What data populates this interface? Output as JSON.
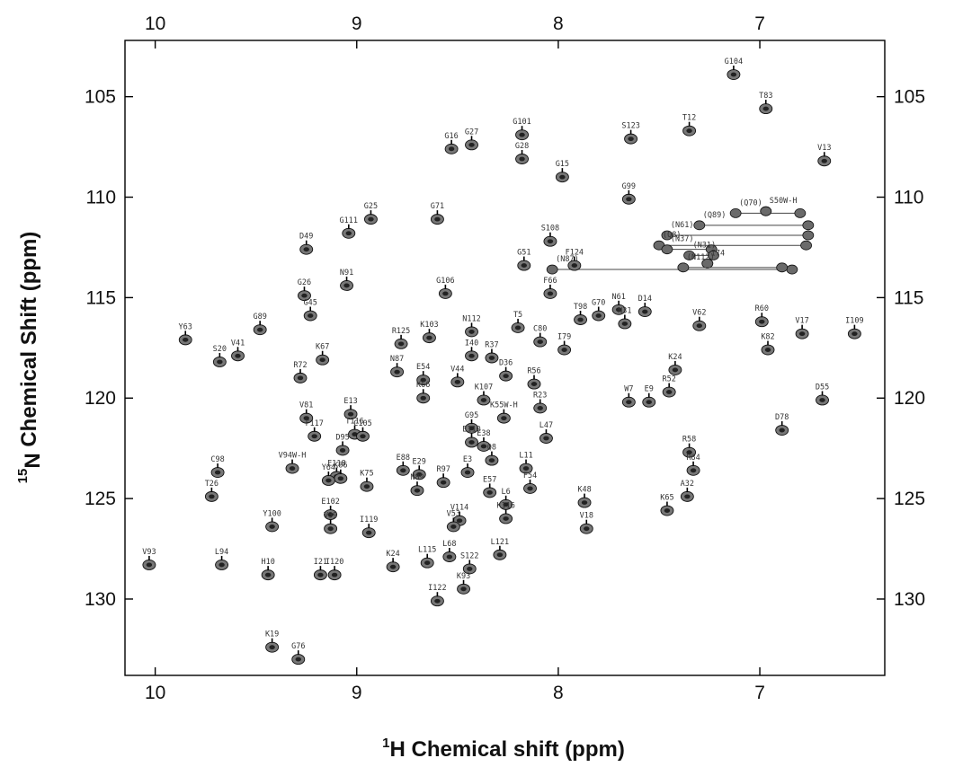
{
  "chart_data": {
    "type": "scatter",
    "title": "",
    "xlabel": {
      "sup": "1",
      "main": "H Chemical shift (ppm)"
    },
    "ylabel": {
      "sup": "15",
      "sub": "N",
      "main": " Chemical Shift (ppm)"
    },
    "xlim": [
      10.15,
      6.38
    ],
    "ylim": [
      133.8,
      102.2
    ],
    "xticks": [
      10,
      9,
      8,
      7
    ],
    "yticks": [
      105,
      110,
      115,
      120,
      125,
      130
    ],
    "grid": false,
    "peaks": [
      {
        "label": "G104",
        "x": 7.13,
        "y": 103.9
      },
      {
        "label": "T83",
        "x": 6.97,
        "y": 105.6
      },
      {
        "label": "T12",
        "x": 7.35,
        "y": 106.7
      },
      {
        "label": "S123",
        "x": 7.64,
        "y": 107.1
      },
      {
        "label": "G101",
        "x": 8.18,
        "y": 106.9
      },
      {
        "label": "G27",
        "x": 8.43,
        "y": 107.4
      },
      {
        "label": "G16",
        "x": 8.53,
        "y": 107.6
      },
      {
        "label": "V13",
        "x": 6.68,
        "y": 108.2
      },
      {
        "label": "G28",
        "x": 8.18,
        "y": 108.1
      },
      {
        "label": "G15",
        "x": 7.98,
        "y": 109.0
      },
      {
        "label": "G99",
        "x": 7.65,
        "y": 110.1
      },
      {
        "label": "G25",
        "x": 8.93,
        "y": 111.1
      },
      {
        "label": "G71",
        "x": 8.6,
        "y": 111.1
      },
      {
        "label": "G111",
        "x": 9.04,
        "y": 111.8
      },
      {
        "label": "S108",
        "x": 8.04,
        "y": 112.2
      },
      {
        "label": "D49",
        "x": 9.25,
        "y": 112.6
      },
      {
        "label": "F124",
        "x": 7.92,
        "y": 113.4
      },
      {
        "label": "G51",
        "x": 8.17,
        "y": 113.4
      },
      {
        "label": "N91",
        "x": 9.05,
        "y": 114.4
      },
      {
        "label": "G106",
        "x": 8.56,
        "y": 114.8
      },
      {
        "label": "G26",
        "x": 9.26,
        "y": 114.9
      },
      {
        "label": "G45",
        "x": 9.23,
        "y": 115.9
      },
      {
        "label": "F66",
        "x": 8.04,
        "y": 114.8
      },
      {
        "label": "T98",
        "x": 7.89,
        "y": 116.1
      },
      {
        "label": "G70",
        "x": 7.8,
        "y": 115.9
      },
      {
        "label": "N61",
        "x": 7.7,
        "y": 115.6
      },
      {
        "label": "D14",
        "x": 7.57,
        "y": 115.7
      },
      {
        "label": "N31",
        "x": 7.67,
        "y": 116.3
      },
      {
        "label": "V62",
        "x": 7.3,
        "y": 116.4
      },
      {
        "label": "R60",
        "x": 6.99,
        "y": 116.2
      },
      {
        "label": "V17",
        "x": 6.79,
        "y": 116.8
      },
      {
        "label": "I109",
        "x": 6.53,
        "y": 116.8
      },
      {
        "label": "G89",
        "x": 9.48,
        "y": 116.6
      },
      {
        "label": "Y63",
        "x": 9.85,
        "y": 117.1
      },
      {
        "label": "N112",
        "x": 8.43,
        "y": 116.7
      },
      {
        "label": "K103",
        "x": 8.64,
        "y": 117.0
      },
      {
        "label": "T5",
        "x": 8.2,
        "y": 116.5
      },
      {
        "label": "C80",
        "x": 8.09,
        "y": 117.2
      },
      {
        "label": "I79",
        "x": 7.97,
        "y": 117.6
      },
      {
        "label": "R125",
        "x": 8.78,
        "y": 117.3
      },
      {
        "label": "S20",
        "x": 9.68,
        "y": 118.2
      },
      {
        "label": "V41",
        "x": 9.59,
        "y": 117.9
      },
      {
        "label": "K67",
        "x": 9.17,
        "y": 118.1
      },
      {
        "label": "I40",
        "x": 8.43,
        "y": 117.9
      },
      {
        "label": "R37",
        "x": 8.33,
        "y": 118.0
      },
      {
        "label": "R72",
        "x": 9.28,
        "y": 119.0
      },
      {
        "label": "N87",
        "x": 8.8,
        "y": 118.7
      },
      {
        "label": "K24",
        "x": 7.42,
        "y": 118.6
      },
      {
        "label": "K82",
        "x": 6.96,
        "y": 117.6
      },
      {
        "label": "R56",
        "x": 8.12,
        "y": 119.3
      },
      {
        "label": "D36",
        "x": 8.26,
        "y": 118.9
      },
      {
        "label": "V44",
        "x": 8.5,
        "y": 119.2
      },
      {
        "label": "E54",
        "x": 8.67,
        "y": 119.1
      },
      {
        "label": "K107",
        "x": 8.37,
        "y": 120.1
      },
      {
        "label": "R23",
        "x": 8.09,
        "y": 120.5
      },
      {
        "label": "K66",
        "x": 8.67,
        "y": 120.0
      },
      {
        "label": "W7",
        "x": 7.65,
        "y": 120.2
      },
      {
        "label": "E9",
        "x": 7.55,
        "y": 120.2
      },
      {
        "label": "R52",
        "x": 7.45,
        "y": 119.7
      },
      {
        "label": "D55",
        "x": 6.69,
        "y": 120.1
      },
      {
        "label": "V81",
        "x": 9.25,
        "y": 121.0
      },
      {
        "label": "E13",
        "x": 9.03,
        "y": 120.8
      },
      {
        "label": "K55W-H",
        "x": 8.27,
        "y": 121.0
      },
      {
        "label": "D78",
        "x": 6.89,
        "y": 121.6
      },
      {
        "label": "T116",
        "x": 9.01,
        "y": 121.8
      },
      {
        "label": "C105",
        "x": 8.97,
        "y": 121.9
      },
      {
        "label": "F117",
        "x": 9.21,
        "y": 121.9
      },
      {
        "label": "G95",
        "x": 8.43,
        "y": 121.5
      },
      {
        "label": "E38",
        "x": 8.37,
        "y": 122.4
      },
      {
        "label": "L47",
        "x": 8.06,
        "y": 122.0
      },
      {
        "label": "D95",
        "x": 9.07,
        "y": 122.6
      },
      {
        "label": "L11",
        "x": 8.16,
        "y": 123.5
      },
      {
        "label": "Q8",
        "x": 8.33,
        "y": 123.1
      },
      {
        "label": "R58",
        "x": 7.35,
        "y": 122.7
      },
      {
        "label": "E110",
        "x": 8.43,
        "y": 122.2
      },
      {
        "label": "V94W-H",
        "x": 9.32,
        "y": 123.5
      },
      {
        "label": "E118",
        "x": 9.1,
        "y": 123.9
      },
      {
        "label": "K86",
        "x": 9.08,
        "y": 124.0
      },
      {
        "label": "E88",
        "x": 8.77,
        "y": 123.6
      },
      {
        "label": "E29",
        "x": 8.69,
        "y": 123.8
      },
      {
        "label": "E3",
        "x": 8.45,
        "y": 123.7
      },
      {
        "label": "F54",
        "x": 8.14,
        "y": 124.5
      },
      {
        "label": "R84",
        "x": 7.33,
        "y": 123.6
      },
      {
        "label": "C98",
        "x": 9.69,
        "y": 123.7
      },
      {
        "label": "Y64",
        "x": 9.14,
        "y": 124.1
      },
      {
        "label": "K75",
        "x": 8.95,
        "y": 124.4
      },
      {
        "label": "N89",
        "x": 8.7,
        "y": 124.6
      },
      {
        "label": "R97",
        "x": 8.57,
        "y": 124.2
      },
      {
        "label": "E57",
        "x": 8.34,
        "y": 124.7
      },
      {
        "label": "L6",
        "x": 8.26,
        "y": 125.3
      },
      {
        "label": "T26",
        "x": 9.72,
        "y": 124.9
      },
      {
        "label": "K48",
        "x": 7.87,
        "y": 125.2
      },
      {
        "label": "A32",
        "x": 7.36,
        "y": 124.9
      },
      {
        "label": "K65",
        "x": 7.46,
        "y": 125.6
      },
      {
        "label": "E102",
        "x": 9.13,
        "y": 125.8
      },
      {
        "label": "V114",
        "x": 8.49,
        "y": 126.1
      },
      {
        "label": "K116",
        "x": 8.26,
        "y": 126.0
      },
      {
        "label": "Y100",
        "x": 9.42,
        "y": 126.4
      },
      {
        "label": "V39",
        "x": 9.13,
        "y": 126.5
      },
      {
        "label": "I119",
        "x": 8.94,
        "y": 126.7
      },
      {
        "label": "V53",
        "x": 8.52,
        "y": 126.4
      },
      {
        "label": "V18",
        "x": 7.86,
        "y": 126.5
      },
      {
        "label": "V93",
        "x": 10.03,
        "y": 128.3
      },
      {
        "label": "L94",
        "x": 9.67,
        "y": 128.3
      },
      {
        "label": "I120",
        "x": 9.11,
        "y": 128.8
      },
      {
        "label": "I21",
        "x": 9.18,
        "y": 128.8
      },
      {
        "label": "K24",
        "x": 8.82,
        "y": 128.4
      },
      {
        "label": "L115",
        "x": 8.65,
        "y": 128.2
      },
      {
        "label": "L68",
        "x": 8.54,
        "y": 127.9
      },
      {
        "label": "S122",
        "x": 8.44,
        "y": 128.5
      },
      {
        "label": "L121",
        "x": 8.29,
        "y": 127.8
      },
      {
        "label": "H10",
        "x": 9.44,
        "y": 128.8
      },
      {
        "label": "I122",
        "x": 8.6,
        "y": 130.1
      },
      {
        "label": "K93",
        "x": 8.47,
        "y": 129.5
      },
      {
        "label": "K19",
        "x": 9.42,
        "y": 132.4
      },
      {
        "label": "G76",
        "x": 9.29,
        "y": 133.0
      }
    ],
    "nh2_pairs": [
      {
        "label": "(Q70)",
        "x1": 7.12,
        "x2": 6.8,
        "y": 110.8
      },
      {
        "label": "S50W-H",
        "x1": 6.97,
        "x2": 6.97,
        "y": 110.7
      },
      {
        "label": "(Q89)",
        "x1": 7.3,
        "x2": 6.76,
        "y": 111.4
      },
      {
        "label": "(N61)",
        "x1": 7.46,
        "x2": 6.76,
        "y": 111.9
      },
      {
        "label": "(Q8)",
        "x1": 7.5,
        "x2": 6.77,
        "y": 112.4
      },
      {
        "label": "(N37)",
        "x1": 7.46,
        "x2": 7.24,
        "y": 112.6
      },
      {
        "label": "(N31)",
        "x1": 7.35,
        "x2": 7.23,
        "y": 112.9
      },
      {
        "label": "I74",
        "x1": 7.26,
        "x2": 7.26,
        "y": 113.3
      },
      {
        "label": "(N87)",
        "x1": 8.03,
        "x2": 6.84,
        "y": 113.6
      },
      {
        "label": "(N112)",
        "x1": 7.38,
        "x2": 6.89,
        "y": 113.5
      }
    ]
  }
}
